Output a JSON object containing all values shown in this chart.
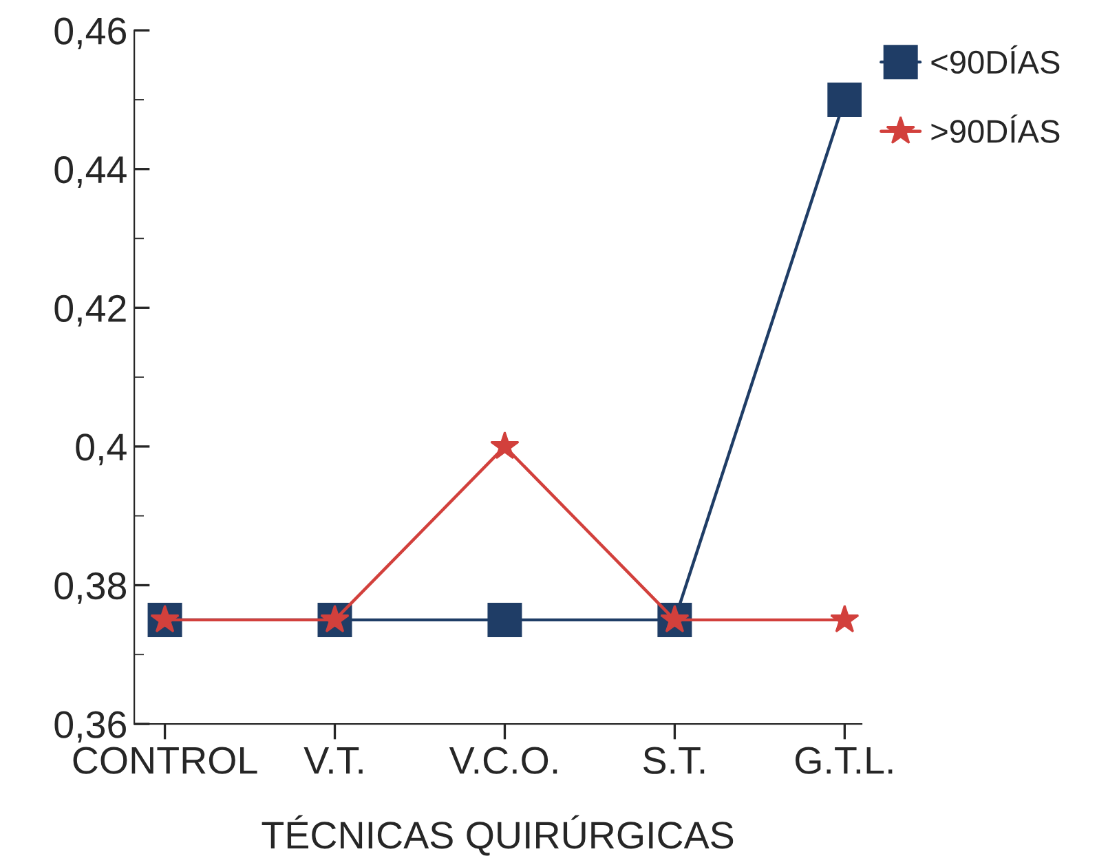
{
  "chart_data": {
    "type": "line",
    "xlabel": "TÉCNICAS QUIRÚRGICAS",
    "categories": [
      "CONTROL",
      "V.T.",
      "V.C.O.",
      "S.T.",
      "G.T.L."
    ],
    "series": [
      {
        "name": "<90DÍAS",
        "color": "#1f3d66",
        "marker": "square",
        "values": [
          0.375,
          0.375,
          0.375,
          0.375,
          0.45
        ]
      },
      {
        "name": ">90DÍAS",
        "color": "#d2403c",
        "marker": "star",
        "values": [
          0.375,
          0.375,
          0.4,
          0.375,
          0.375
        ]
      }
    ],
    "ylim": [
      0.36,
      0.46
    ],
    "yticks": [
      {
        "value": 0.36,
        "label": "0,36"
      },
      {
        "value": 0.38,
        "label": "0,38"
      },
      {
        "value": 0.4,
        "label": "0,4"
      },
      {
        "value": 0.42,
        "label": "0,42"
      },
      {
        "value": 0.44,
        "label": "0,44"
      },
      {
        "value": 0.46,
        "label": "0,46"
      }
    ],
    "grid": false,
    "legend": "top right",
    "line_style": "solid"
  }
}
